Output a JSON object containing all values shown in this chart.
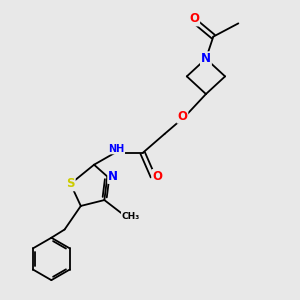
{
  "bg_color": "#e8e8e8",
  "bond_color": "#000000",
  "bond_width": 1.3,
  "atom_colors": {
    "N": "#0000FF",
    "O": "#FF0000",
    "S": "#CCCC00",
    "H": "#4682B4",
    "C": "#000000"
  },
  "font_size": 7.5,
  "xlim": [
    0,
    10
  ],
  "ylim": [
    0,
    10
  ]
}
